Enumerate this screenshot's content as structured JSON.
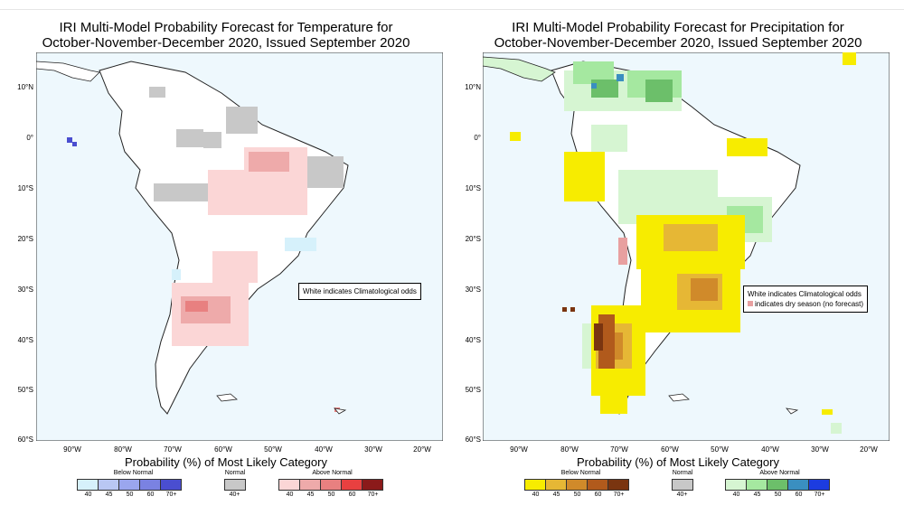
{
  "temperature_panel": {
    "title_line1": "IRI Multi-Model Probability Forecast for Temperature for",
    "title_line2": "October-November-December 2020, Issued September 2020",
    "note": "White indicates Climatological odds",
    "legend_title": "Probability (%) of Most Likely Category",
    "below": {
      "label": "Below Normal",
      "ticks": [
        "40",
        "45",
        "50",
        "60",
        "70+"
      ],
      "colors": [
        "#d6f1fb",
        "#b9c7f3",
        "#9aa6ee",
        "#7a82e2",
        "#4a4ed0"
      ]
    },
    "normal": {
      "label": "Normal",
      "ticks": [
        "40+"
      ],
      "colors": [
        "#c8c8c8"
      ]
    },
    "above": {
      "label": "Above Normal",
      "ticks": [
        "40",
        "45",
        "50",
        "60",
        "70+"
      ],
      "colors": [
        "#fbd6d6",
        "#eeaaaa",
        "#e88080",
        "#e84040",
        "#8b1a1a"
      ]
    }
  },
  "precipitation_panel": {
    "title_line1": "IRI Multi-Model Probability Forecast for Precipitation for",
    "title_line2": "October-November-December 2020, Issued September 2020",
    "note_line1": "White indicates Climatological odds",
    "note_line2": "indicates dry season (no forecast)",
    "legend_title": "Probability (%) of Most Likely Category",
    "below": {
      "label": "Below Normal",
      "ticks": [
        "40",
        "45",
        "50",
        "60",
        "70+"
      ],
      "colors": [
        "#f7ec00",
        "#e6b735",
        "#d08a2a",
        "#b15a1c",
        "#7a3510"
      ]
    },
    "normal": {
      "label": "Normal",
      "ticks": [
        "40+"
      ],
      "colors": [
        "#c8c8c8"
      ]
    },
    "above": {
      "label": "Above Normal",
      "ticks": [
        "40",
        "45",
        "50",
        "60",
        "70+"
      ],
      "colors": [
        "#d6f5d2",
        "#a5e8a0",
        "#6cbf6a",
        "#3a8fc0",
        "#1c3ce0"
      ]
    }
  },
  "axes": {
    "lat_labels": [
      "10°N",
      "0°",
      "10°S",
      "20°S",
      "30°S",
      "40°S",
      "50°S",
      "60°S"
    ],
    "lon_labels": [
      "90°W",
      "80°W",
      "70°W",
      "60°W",
      "50°W",
      "40°W",
      "30°W",
      "20°W"
    ]
  },
  "colors": {
    "ocean": "#eef8fd",
    "land": "#ffffff",
    "outline": "#222222"
  }
}
